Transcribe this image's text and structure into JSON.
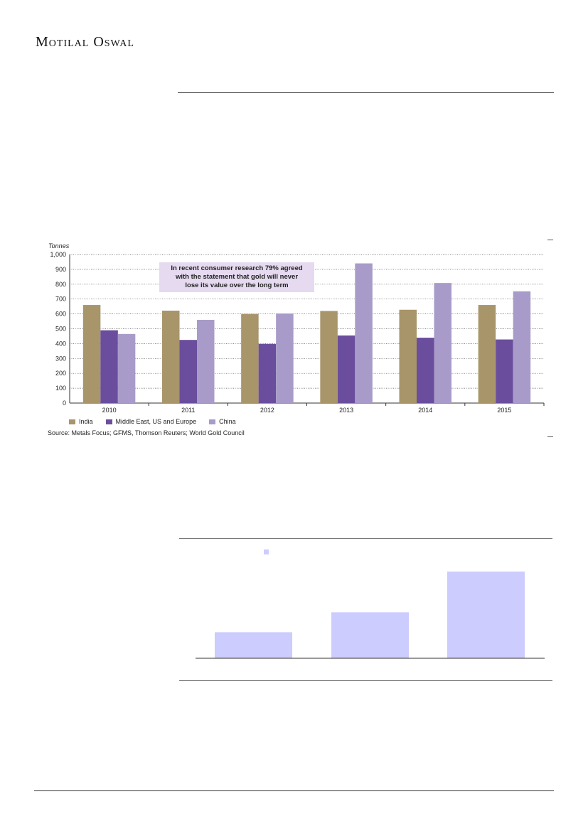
{
  "header": {
    "brand": "Motilal Oswal"
  },
  "chart1": {
    "chart_data": {
      "type": "bar",
      "ylabel": "Tonnes",
      "ylim": [
        0,
        1000
      ],
      "yticks": [
        "0",
        "100",
        "200",
        "300",
        "400",
        "500",
        "600",
        "700",
        "800",
        "900",
        "1,000"
      ],
      "categories": [
        "2010",
        "2011",
        "2012",
        "2013",
        "2014",
        "2015"
      ],
      "series": [
        {
          "name": "India",
          "color": "#a8956a",
          "values": [
            660,
            622,
            600,
            620,
            628,
            660
          ]
        },
        {
          "name": "Middle East, US and Europe",
          "color": "#6a4e9d",
          "values": [
            490,
            425,
            398,
            455,
            440,
            428
          ]
        },
        {
          "name": "China",
          "color": "#a89bc9",
          "values": [
            465,
            560,
            603,
            940,
            808,
            752
          ]
        }
      ],
      "annotation": {
        "line1": "In recent consumer research 79% agreed",
        "line2": "with the statement that gold will never",
        "line3": "lose its value over the long term"
      },
      "legend": "bottom-left",
      "grid": true
    },
    "source": "Source: Metals Focus; GFMS, Thomson Reuters; World Gold Council"
  },
  "chart2": {
    "chart_data": {
      "type": "bar",
      "categories": [
        "",
        "",
        ""
      ],
      "series": [
        {
          "color": "#ccccff",
          "values": [
            30,
            53,
            100
          ]
        }
      ],
      "ylim": [
        0,
        110
      ],
      "legend": "top-left"
    }
  }
}
